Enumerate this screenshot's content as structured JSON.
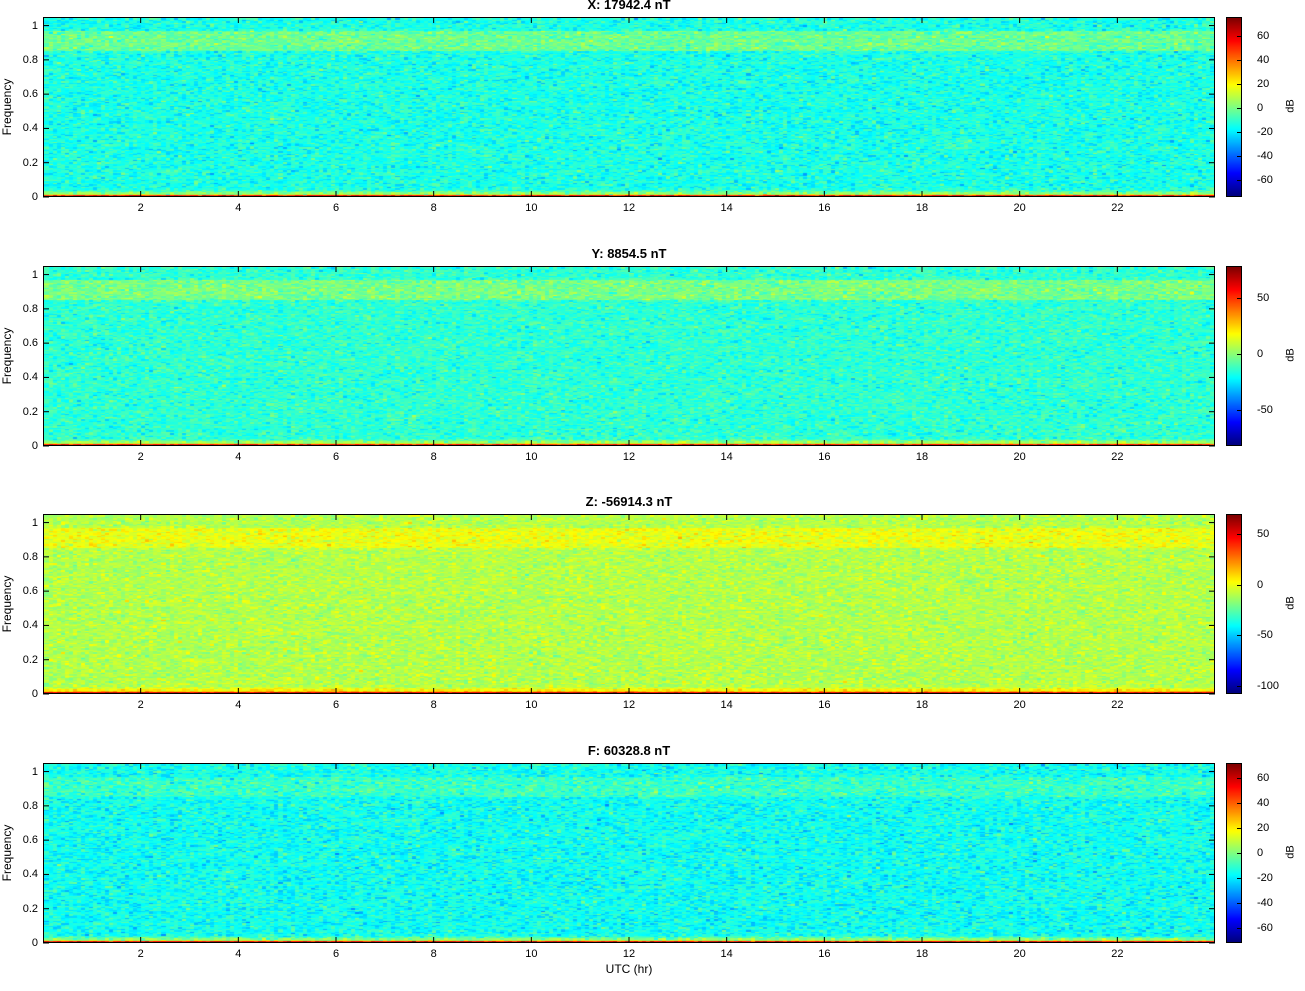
{
  "chart_data": [
    {
      "type": "heatmap",
      "title": "X: 17942.4 nT",
      "ylabel": "Frequency",
      "xlabel": "",
      "xlim": [
        0,
        24
      ],
      "ylim": [
        0,
        1.05
      ],
      "xticks": [
        "2",
        "4",
        "6",
        "8",
        "10",
        "12",
        "14",
        "16",
        "18",
        "20",
        "22"
      ],
      "yticks": [
        "0",
        "0.2",
        "0.4",
        "0.6",
        "0.8",
        "1"
      ],
      "colorbar": {
        "label": "dB",
        "clim": [
          -74,
          76
        ],
        "ticks": [
          "60",
          "40",
          "20",
          "0",
          "-20",
          "-40",
          "-60"
        ],
        "tick_values": [
          60,
          40,
          20,
          0,
          -20,
          -40,
          -60
        ]
      },
      "background_level_db": -14,
      "top_band_level_db": -2,
      "low_freq_level_db": 45
    },
    {
      "type": "heatmap",
      "title": "Y: 8854.5 nT",
      "ylabel": "Frequency",
      "xlabel": "",
      "xlim": [
        0,
        24
      ],
      "ylim": [
        0,
        1.05
      ],
      "xticks": [
        "2",
        "4",
        "6",
        "8",
        "10",
        "12",
        "14",
        "16",
        "18",
        "20",
        "22"
      ],
      "yticks": [
        "0",
        "0.2",
        "0.4",
        "0.6",
        "0.8",
        "1"
      ],
      "colorbar": {
        "label": "dB",
        "clim": [
          -82,
          78
        ],
        "ticks": [
          "50",
          "0",
          "-50"
        ],
        "tick_values": [
          50,
          0,
          -50
        ]
      },
      "background_level_db": -15,
      "top_band_level_db": -3,
      "low_freq_level_db": 45
    },
    {
      "type": "heatmap",
      "title": "Z: -56914.3 nT",
      "ylabel": "Frequency",
      "xlabel": "",
      "xlim": [
        0,
        24
      ],
      "ylim": [
        0,
        1.05
      ],
      "xticks": [
        "2",
        "4",
        "6",
        "8",
        "10",
        "12",
        "14",
        "16",
        "18",
        "20",
        "22"
      ],
      "yticks": [
        "0",
        "0.2",
        "0.4",
        "0.6",
        "0.8",
        "1"
      ],
      "colorbar": {
        "label": "dB",
        "clim": [
          -108,
          70
        ],
        "ticks": [
          "50",
          "0",
          "-50",
          "-100"
        ],
        "tick_values": [
          50,
          0,
          -50,
          -100
        ]
      },
      "background_level_db": -10,
      "top_band_level_db": 0,
      "low_freq_level_db": 45
    },
    {
      "type": "heatmap",
      "title": "F: 60328.8 nT",
      "ylabel": "Frequency",
      "xlabel": "UTC (hr)",
      "xlim": [
        0,
        24
      ],
      "ylim": [
        0,
        1.05
      ],
      "xticks": [
        "2",
        "4",
        "6",
        "8",
        "10",
        "12",
        "14",
        "16",
        "18",
        "20",
        "22"
      ],
      "yticks": [
        "0",
        "0.2",
        "0.4",
        "0.6",
        "0.8",
        "1"
      ],
      "colorbar": {
        "label": "dB",
        "clim": [
          -72,
          72
        ],
        "ticks": [
          "60",
          "40",
          "20",
          "0",
          "-20",
          "-40",
          "-60"
        ],
        "tick_values": [
          60,
          40,
          20,
          0,
          -20,
          -40,
          -60
        ]
      },
      "background_level_db": -16,
      "top_band_level_db": -10,
      "low_freq_level_db": 45
    }
  ]
}
